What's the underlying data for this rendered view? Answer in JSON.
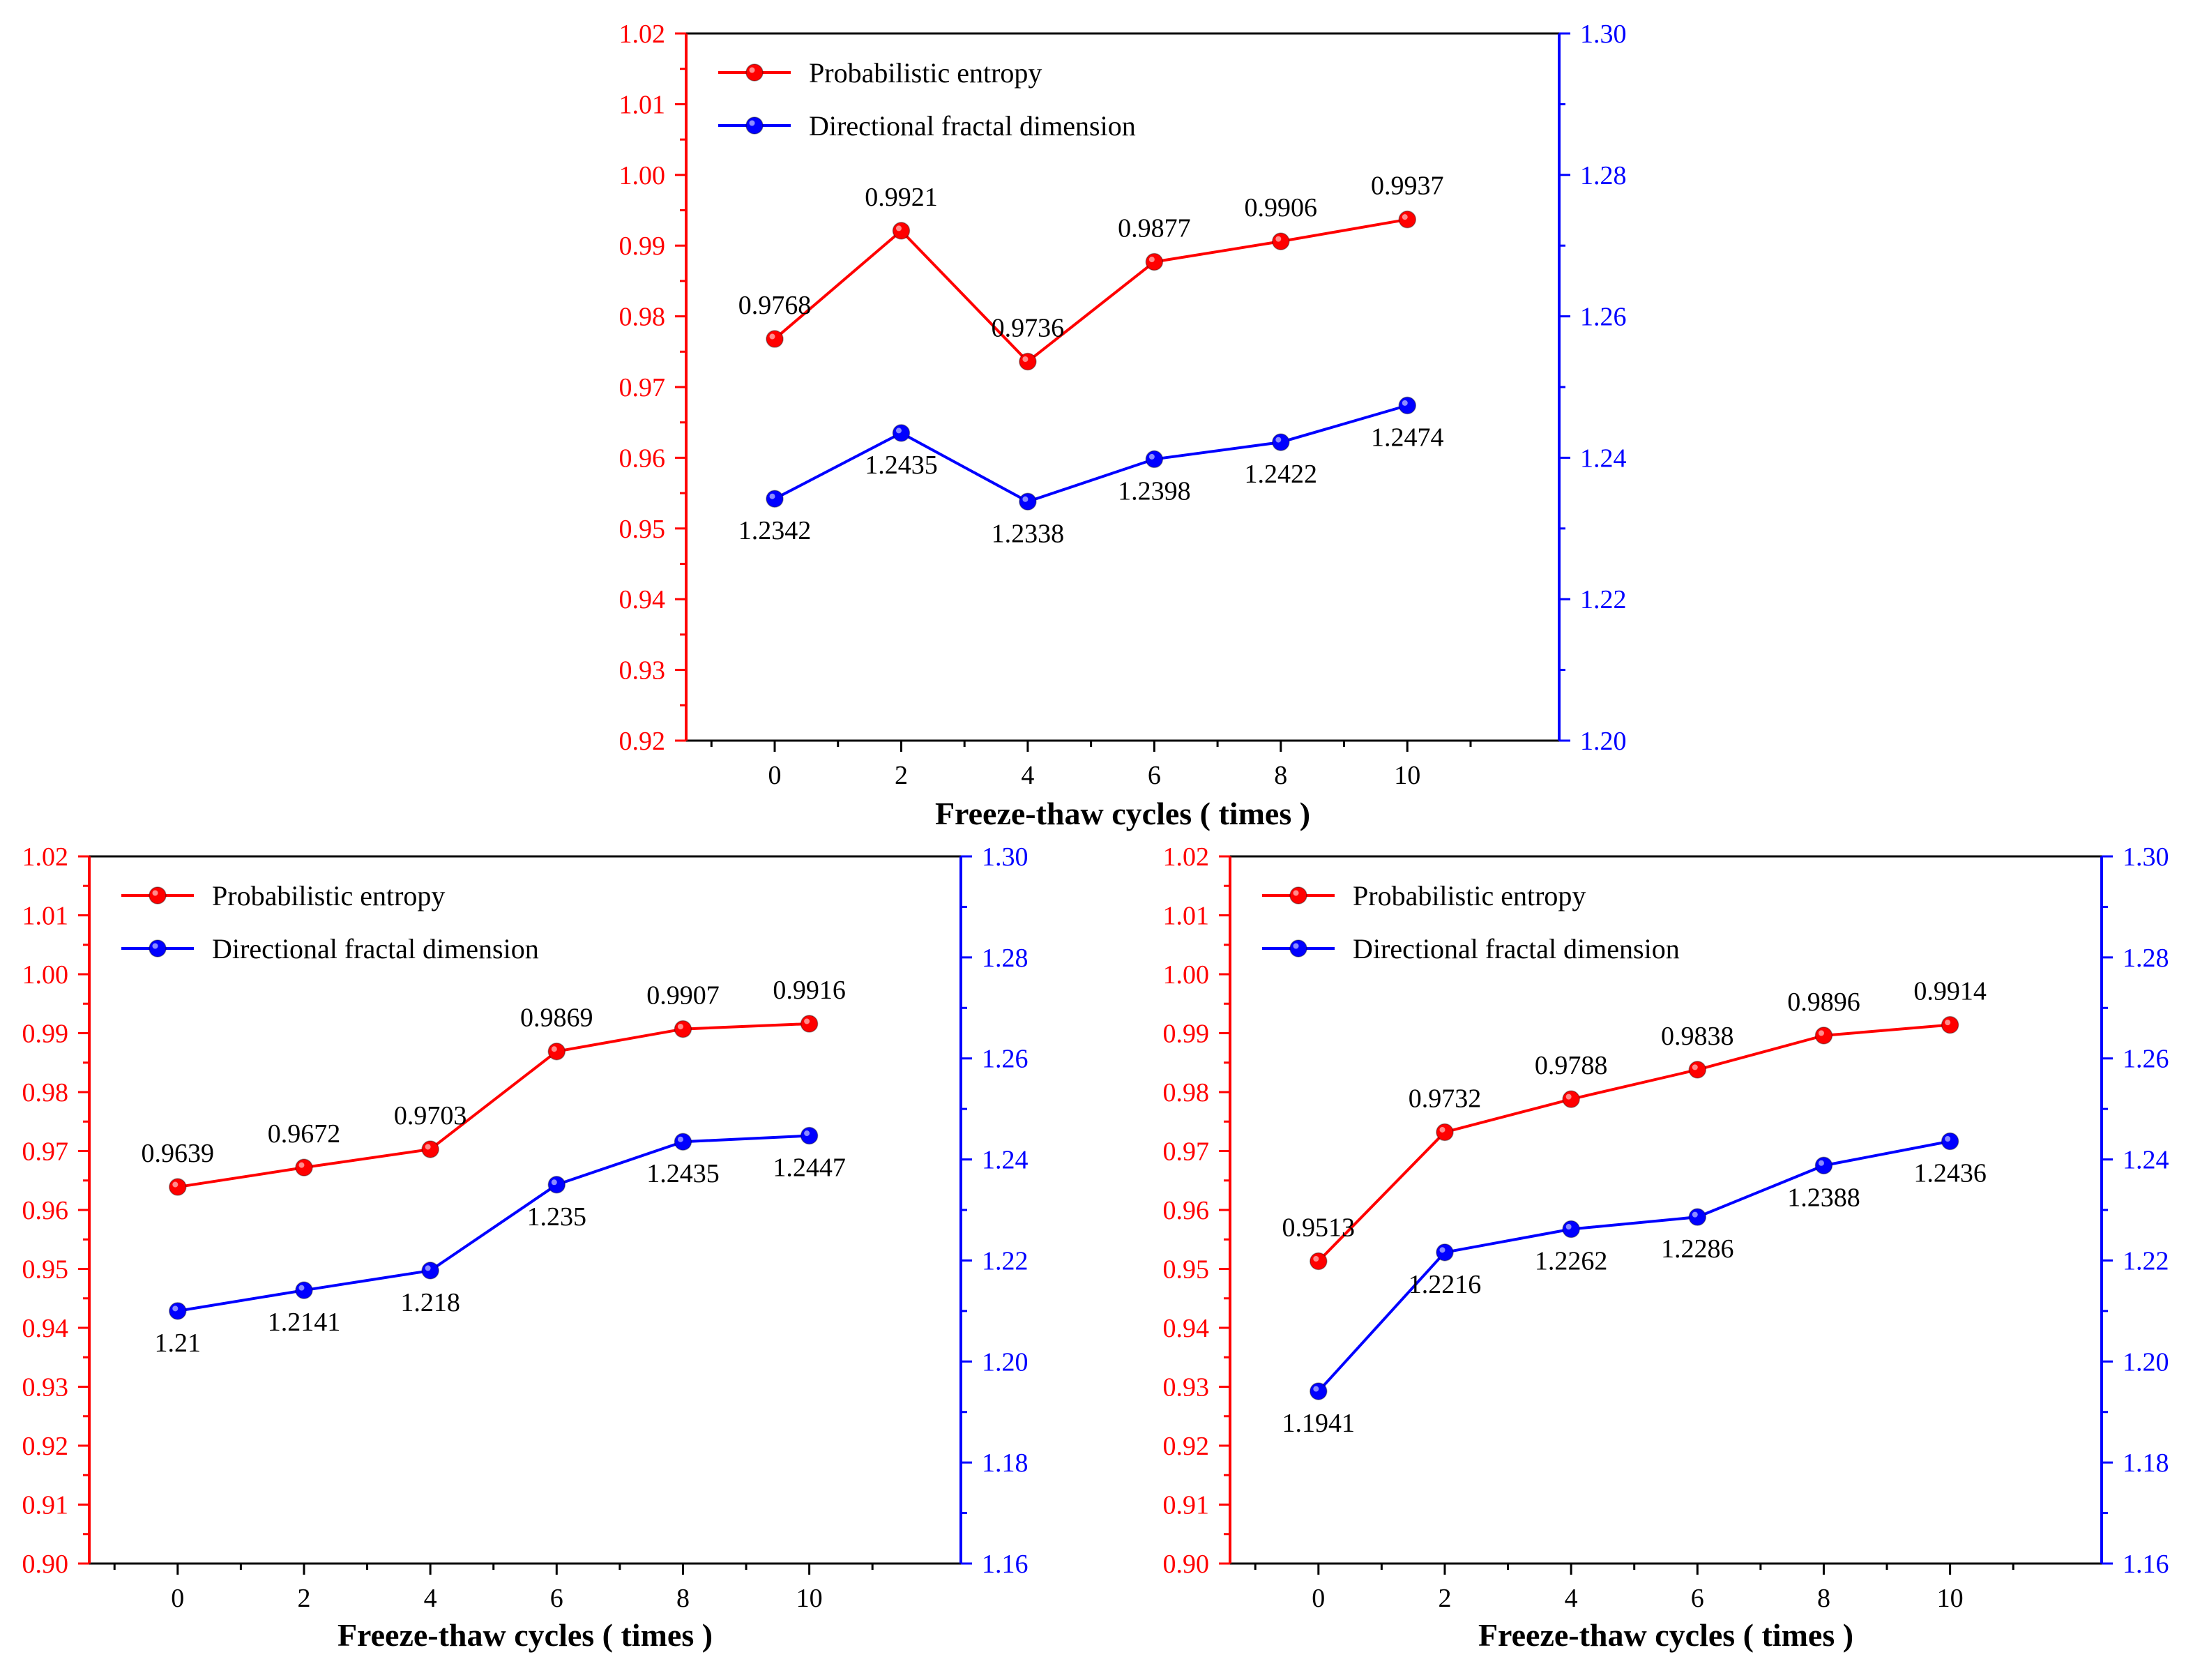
{
  "figure": {
    "colors": {
      "left_axis": "#ff0000",
      "right_axis": "#0000ff",
      "frame": "#000000",
      "text": "#000000"
    }
  },
  "chart_data": [
    {
      "type": "line",
      "position": "top",
      "x": [
        0,
        2,
        4,
        6,
        8,
        10
      ],
      "xlabel": "Freeze-thaw cycles ( times )",
      "xticks": [
        "0",
        "2",
        "4",
        "6",
        "8",
        "10"
      ],
      "xlim": [
        -1.4,
        12.4
      ],
      "yleft": {
        "lim": [
          0.92,
          1.02
        ],
        "ticks": [
          "0.92",
          "0.93",
          "0.94",
          "0.95",
          "0.96",
          "0.97",
          "0.98",
          "0.99",
          "1.00",
          "1.01",
          "1.02"
        ],
        "color": "#ff0000"
      },
      "yright": {
        "lim": [
          1.2,
          1.3
        ],
        "ticks": [
          "1.20",
          "1.22",
          "1.24",
          "1.26",
          "1.28",
          "1.30"
        ],
        "color": "#0000ff"
      },
      "legend_position": "top-left",
      "grid": false,
      "series": [
        {
          "name": "Probabilistic entropy",
          "axis": "left",
          "color": "#ff0000",
          "values": [
            0.9768,
            0.9921,
            0.9736,
            0.9877,
            0.9906,
            0.9937
          ],
          "labels": [
            "0.9768",
            "0.9921",
            "0.9736",
            "0.9877",
            "0.9906",
            "0.9937"
          ]
        },
        {
          "name": "Directional fractal dimension",
          "axis": "right",
          "color": "#0000ff",
          "values": [
            1.2342,
            1.2435,
            1.2338,
            1.2398,
            1.2422,
            1.2474
          ],
          "labels": [
            "1.2342",
            "1.2435",
            "1.2338",
            "1.2398",
            "1.2422",
            "1.2474"
          ]
        }
      ]
    },
    {
      "type": "line",
      "position": "bottom-left",
      "x": [
        0,
        2,
        4,
        6,
        8,
        10
      ],
      "xlabel": "Freeze-thaw cycles ( times )",
      "xticks": [
        "0",
        "2",
        "4",
        "6",
        "8",
        "10"
      ],
      "xlim": [
        -1.4,
        12.4
      ],
      "yleft": {
        "lim": [
          0.9,
          1.02
        ],
        "ticks": [
          "0.90",
          "0.91",
          "0.92",
          "0.93",
          "0.94",
          "0.95",
          "0.96",
          "0.97",
          "0.98",
          "0.99",
          "1.00",
          "1.01",
          "1.02"
        ],
        "color": "#ff0000"
      },
      "yright": {
        "lim": [
          1.16,
          1.3
        ],
        "ticks": [
          "1.16",
          "1.18",
          "1.20",
          "1.22",
          "1.24",
          "1.26",
          "1.28",
          "1.30"
        ],
        "color": "#0000ff"
      },
      "legend_position": "top-left",
      "grid": false,
      "series": [
        {
          "name": "Probabilistic entropy",
          "axis": "left",
          "color": "#ff0000",
          "values": [
            0.9639,
            0.9672,
            0.9703,
            0.9869,
            0.9907,
            0.9916
          ],
          "labels": [
            "0.9639",
            "0.9672",
            "0.9703",
            "0.9869",
            "0.9907",
            "0.9916"
          ]
        },
        {
          "name": "Directional fractal dimension",
          "axis": "right",
          "color": "#0000ff",
          "values": [
            1.21,
            1.2141,
            1.218,
            1.235,
            1.2435,
            1.2447
          ],
          "labels": [
            "1.21",
            "1.2141",
            "1.218",
            "1.235",
            "1.2435",
            "1.2447"
          ]
        }
      ]
    },
    {
      "type": "line",
      "position": "bottom-right",
      "x": [
        0,
        2,
        4,
        6,
        8,
        10
      ],
      "xlabel": "Freeze-thaw cycles ( times )",
      "xticks": [
        "0",
        "2",
        "4",
        "6",
        "8",
        "10"
      ],
      "xlim": [
        -1.4,
        12.4
      ],
      "yleft": {
        "lim": [
          0.9,
          1.02
        ],
        "ticks": [
          "0.90",
          "0.91",
          "0.92",
          "0.93",
          "0.94",
          "0.95",
          "0.96",
          "0.97",
          "0.98",
          "0.99",
          "1.00",
          "1.01",
          "1.02"
        ],
        "color": "#ff0000"
      },
      "yright": {
        "lim": [
          1.16,
          1.3
        ],
        "ticks": [
          "1.16",
          "1.18",
          "1.20",
          "1.22",
          "1.24",
          "1.26",
          "1.28",
          "1.30"
        ],
        "color": "#0000ff"
      },
      "legend_position": "top-left",
      "grid": false,
      "series": [
        {
          "name": "Probabilistic entropy",
          "axis": "left",
          "color": "#ff0000",
          "values": [
            0.9513,
            0.9732,
            0.9788,
            0.9838,
            0.9896,
            0.9914
          ],
          "labels": [
            "0.9513",
            "0.9732",
            "0.9788",
            "0.9838",
            "0.9896",
            "0.9914"
          ]
        },
        {
          "name": "Directional fractal dimension",
          "axis": "right",
          "color": "#0000ff",
          "values": [
            1.1941,
            1.2216,
            1.2262,
            1.2286,
            1.2388,
            1.2436
          ],
          "labels": [
            "1.1941",
            "1.2216",
            "1.2262",
            "1.2286",
            "1.2388",
            "1.2436"
          ]
        }
      ]
    }
  ]
}
